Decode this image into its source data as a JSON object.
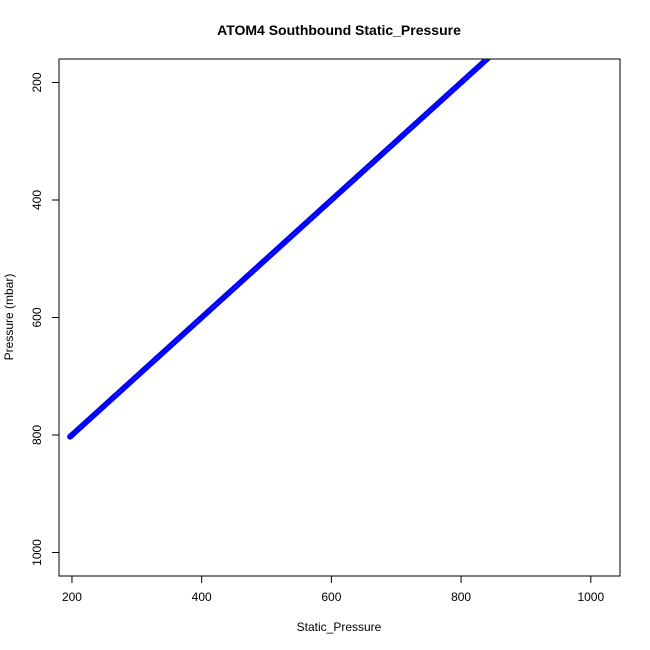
{
  "chart_data": {
    "type": "scatter",
    "title": "ATOM4 Southbound Static_Pressure",
    "xlabel": "Static_Pressure",
    "ylabel": "Pressure (mbar)",
    "xlim": [
      180,
      1045
    ],
    "ylim": [
      1040,
      160
    ],
    "y_reversed": true,
    "xticks": [
      200,
      400,
      600,
      800,
      1000
    ],
    "yticks": [
      200,
      400,
      600,
      800,
      1000
    ],
    "grid": false,
    "marker": "open-circle",
    "color": "#0000ff",
    "series": [
      {
        "x": [
          197,
          199,
          203,
          210,
          218,
          225,
          233,
          240,
          248,
          255,
          262,
          270,
          278,
          285,
          292,
          300,
          308,
          315,
          322,
          330,
          338,
          345,
          352,
          360,
          368,
          375,
          382,
          390,
          398,
          405,
          412,
          420,
          428,
          435,
          442,
          450,
          458,
          465,
          472,
          480,
          488,
          495,
          502,
          510,
          518,
          525,
          532,
          540,
          548,
          555,
          562,
          570,
          578,
          585,
          592,
          600,
          608,
          615,
          622,
          630,
          638,
          645,
          652,
          660,
          668,
          675,
          682,
          690,
          698,
          705,
          712,
          720,
          728,
          735,
          742,
          750,
          758,
          765,
          772,
          780,
          788,
          795,
          802,
          810,
          818,
          825,
          832,
          840,
          848
        ],
        "y": [
          803,
          801,
          797,
          790,
          782,
          775,
          767,
          760,
          752,
          745,
          738,
          730,
          722,
          715,
          708,
          700,
          692,
          685,
          678,
          670,
          662,
          655,
          648,
          640,
          632,
          625,
          618,
          610,
          602,
          595,
          588,
          580,
          572,
          565,
          558,
          550,
          542,
          535,
          528,
          520,
          512,
          505,
          498,
          490,
          482,
          475,
          468,
          460,
          452,
          445,
          438,
          430,
          422,
          415,
          408,
          400,
          392,
          385,
          378,
          370,
          362,
          355,
          348,
          340,
          332,
          325,
          318,
          310,
          302,
          295,
          288,
          280,
          272,
          265,
          258,
          250,
          242,
          235,
          228,
          220,
          212,
          205,
          198,
          190,
          182,
          175,
          168,
          160,
          152
        ]
      }
    ]
  }
}
